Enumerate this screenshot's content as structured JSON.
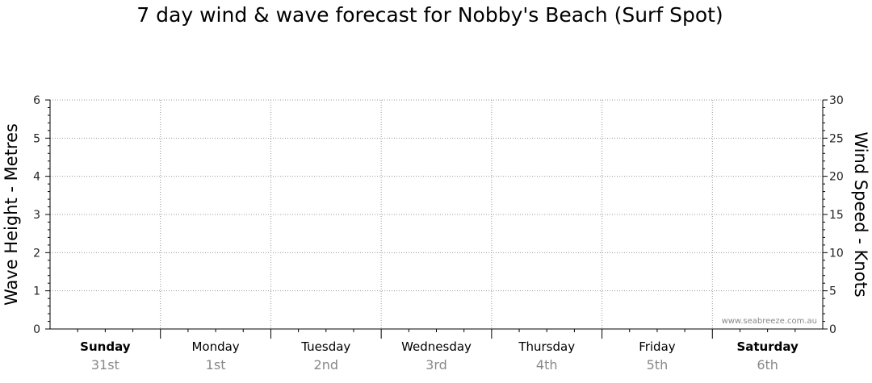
{
  "chart_data": {
    "type": "line",
    "title": "7 day wind & wave forecast for Nobby's Beach (Surf Spot)",
    "ylabel": "Wave Height - Metres",
    "y2label": "Wind Speed - Knots",
    "ylim": [
      0,
      6
    ],
    "y2lim": [
      0,
      30
    ],
    "yticks": [
      "0",
      "1",
      "2",
      "3",
      "4",
      "5",
      "6"
    ],
    "y2ticks": [
      "0",
      "5",
      "10",
      "15",
      "20",
      "25",
      "30"
    ],
    "grid": true,
    "days": [
      {
        "name": "Sunday",
        "date": "31st",
        "weekend": true
      },
      {
        "name": "Monday",
        "date": "1st",
        "weekend": false
      },
      {
        "name": "Tuesday",
        "date": "2nd",
        "weekend": false
      },
      {
        "name": "Wednesday",
        "date": "3rd",
        "weekend": false
      },
      {
        "name": "Thursday",
        "date": "4th",
        "weekend": false
      },
      {
        "name": "Friday",
        "date": "5th",
        "weekend": false
      },
      {
        "name": "Saturday",
        "date": "6th",
        "weekend": true
      }
    ],
    "series": []
  },
  "watermark": "www.seabreeze.com.au",
  "colors": {
    "grid": "#999999",
    "axis": "#000000",
    "date_text": "#888888"
  }
}
